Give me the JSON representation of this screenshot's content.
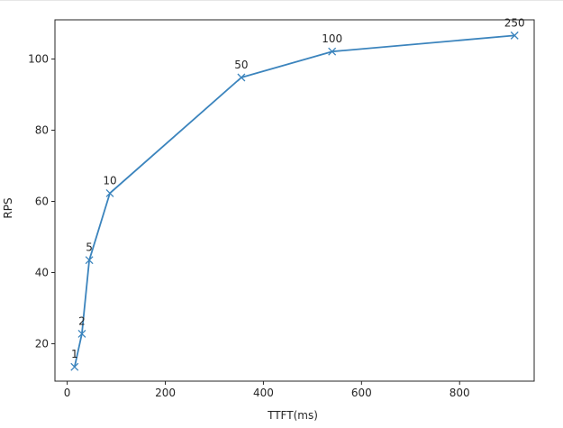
{
  "chart_data": {
    "type": "line",
    "xlabel": "TTFT(ms)",
    "ylabel": "RPS",
    "xlim": [
      -25,
      952
    ],
    "ylim": [
      9.5,
      111
    ],
    "xticks": [
      0,
      200,
      400,
      600,
      800
    ],
    "yticks": [
      20,
      40,
      60,
      80,
      100
    ],
    "grid": false,
    "series": [
      {
        "color": "#3b84bd",
        "marker": "x",
        "points": [
          {
            "x": 15,
            "y": 13.5,
            "label": "1"
          },
          {
            "x": 30,
            "y": 22.8,
            "label": "2"
          },
          {
            "x": 45,
            "y": 43.5,
            "label": "5"
          },
          {
            "x": 87,
            "y": 62.3,
            "label": "10"
          },
          {
            "x": 355,
            "y": 94.8,
            "label": "50"
          },
          {
            "x": 540,
            "y": 102.1,
            "label": "100"
          },
          {
            "x": 912,
            "y": 106.6,
            "label": "250"
          }
        ]
      }
    ]
  }
}
